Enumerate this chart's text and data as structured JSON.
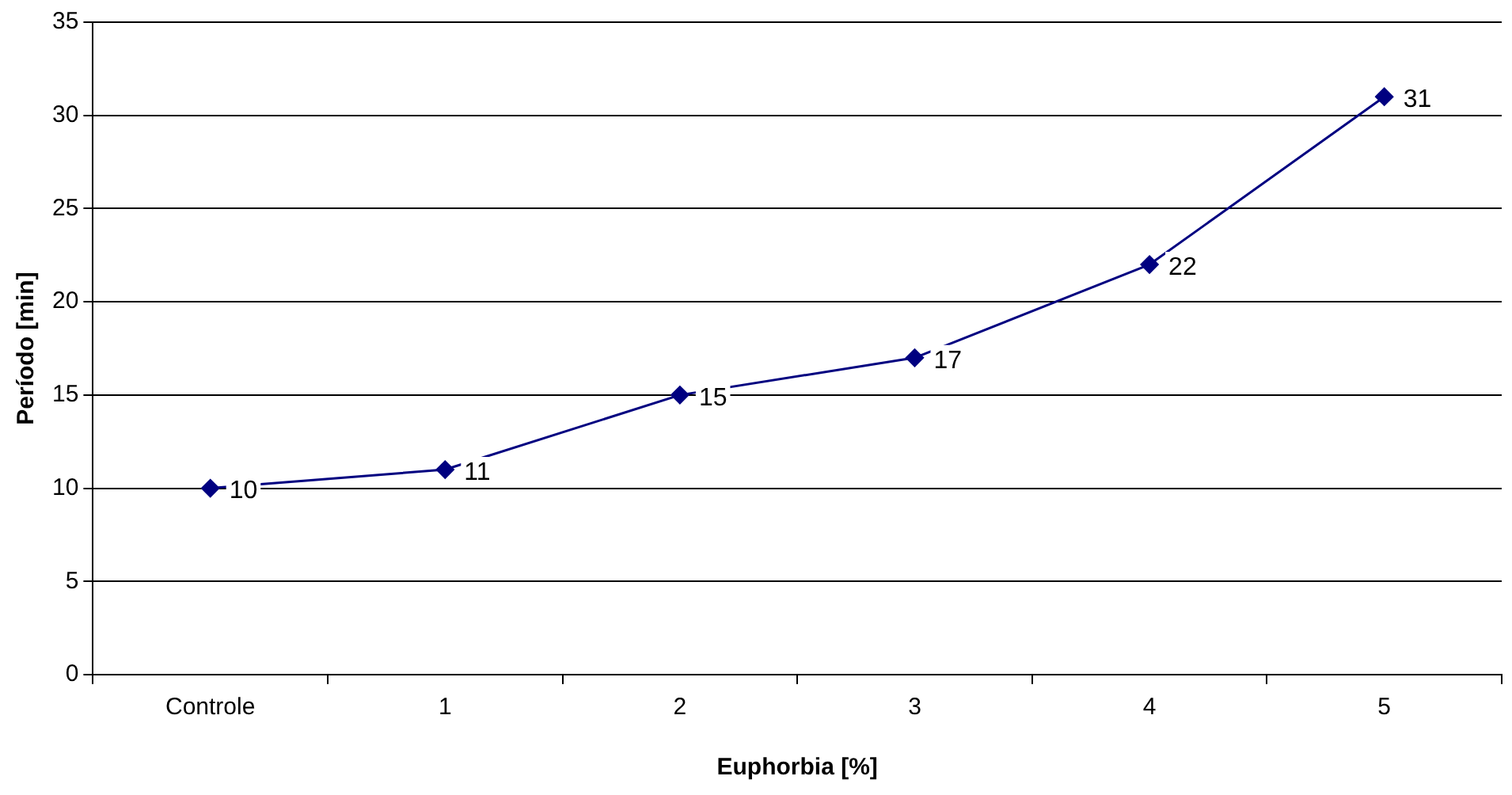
{
  "chart_data": {
    "type": "line",
    "xlabel": "Euphorbia [%]",
    "ylabel": "Período [min]",
    "categories": [
      "Controle",
      "1",
      "2",
      "3",
      "4",
      "5"
    ],
    "series": [
      {
        "color": "#000080",
        "values": [
          10,
          11,
          15,
          17,
          22,
          31
        ]
      }
    ],
    "ylim": [
      0,
      35
    ],
    "yticks": [
      0,
      5,
      10,
      15,
      20,
      25,
      30,
      35
    ],
    "grid": "y",
    "legend": false,
    "marker": "diamond",
    "line_style": "solid",
    "data_labels": true
  }
}
